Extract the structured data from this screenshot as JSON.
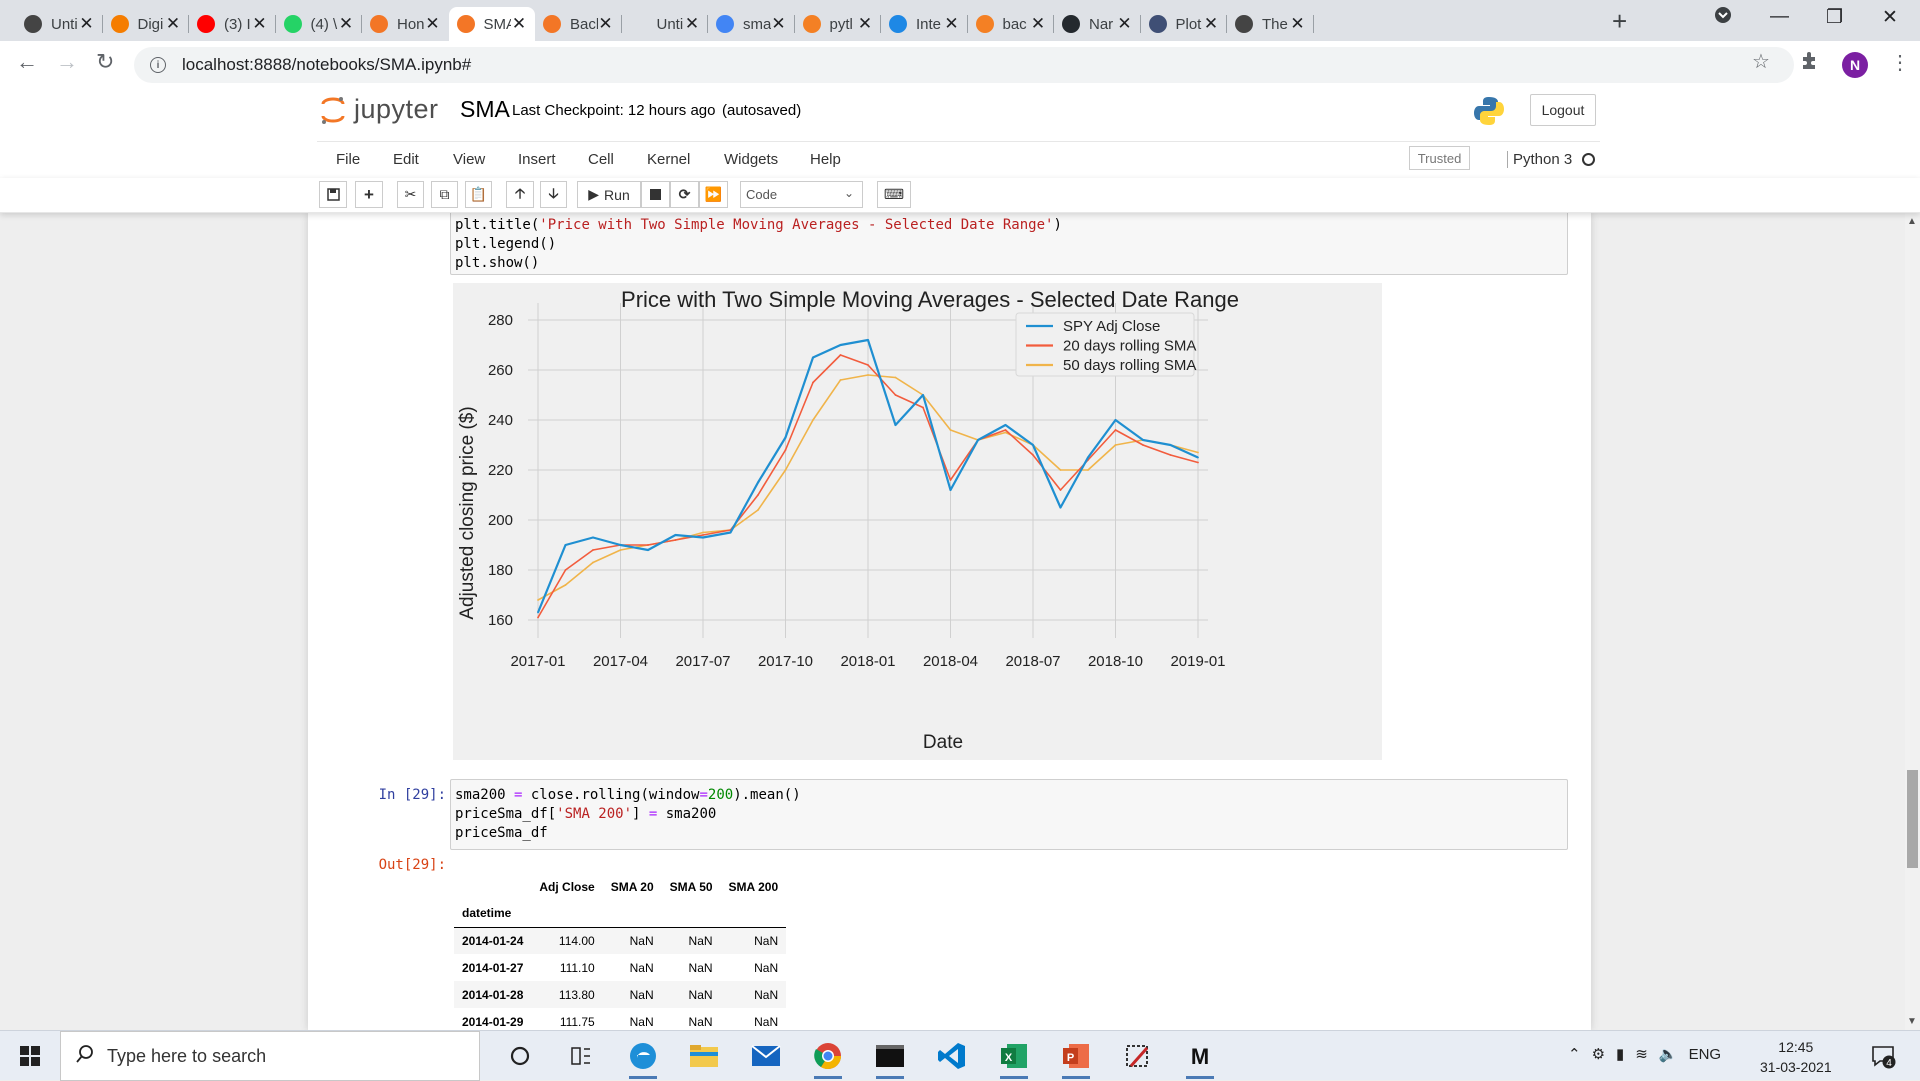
{
  "browser": {
    "tabs": [
      {
        "title": "Unti",
        "icon": "github-icon",
        "color": "#444444"
      },
      {
        "title": "Digi",
        "icon": "blogger-icon",
        "color": "#f57d00"
      },
      {
        "title": "(3) I",
        "icon": "youtube-icon",
        "color": "#ff0000"
      },
      {
        "title": "(4) \\",
        "icon": "whatsapp-icon",
        "color": "#25d366"
      },
      {
        "title": "Hon",
        "icon": "jupyter-icon",
        "color": "#f37626"
      },
      {
        "title": "SMA",
        "icon": "jupyter-notebook-icon",
        "color": "#f37626"
      },
      {
        "title": "Bacl",
        "icon": "jupyter-notebook-icon",
        "color": "#f37626"
      },
      {
        "title": "Unti",
        "icon": "blank-icon",
        "color": "#dee1e6"
      },
      {
        "title": "sma",
        "icon": "google-icon",
        "color": "#4285f4"
      },
      {
        "title": "pytl",
        "icon": "stackoverflow-icon",
        "color": "#f48024"
      },
      {
        "title": "Inte",
        "icon": "is-icon",
        "color": "#1e88e5"
      },
      {
        "title": "bac",
        "icon": "stackoverflow-icon",
        "color": "#f48024"
      },
      {
        "title": "Nar",
        "icon": "github-icon",
        "color": "#24292e"
      },
      {
        "title": "Plot",
        "icon": "plotly-icon",
        "color": "#3f4f75"
      },
      {
        "title": "The",
        "icon": "wordpress-icon",
        "color": "#444444"
      }
    ],
    "active_tab": 5,
    "url": "localhost:8888/notebooks/SMA.ipynb#",
    "profile_initial": "N"
  },
  "jupyter": {
    "logo_text": "jupyter",
    "notebook_name": "SMA",
    "checkpoint": "Last Checkpoint: 12 hours ago",
    "autosave": "(autosaved)",
    "logout": "Logout",
    "menu": [
      "File",
      "Edit",
      "View",
      "Insert",
      "Cell",
      "Kernel",
      "Widgets",
      "Help"
    ],
    "trusted": "Trusted",
    "kernel": "Python 3",
    "toolbar": {
      "run_label": "Run",
      "cell_type": "Code"
    }
  },
  "cells": {
    "code_prev": [
      "plt.title('Price with Two Simple Moving Averages - Selected Date Range')",
      "plt.legend()",
      "plt.show()"
    ],
    "in_prompt": "In [29]:",
    "out_prompt": "Out[29]:",
    "code_29": [
      "sma200 = close.rolling(window=200).mean()",
      "priceSma_df['SMA 200'] = sma200",
      "priceSma_df"
    ]
  },
  "chart_data": {
    "type": "line",
    "title": "Price with Two Simple Moving Averages - Selected Date Range",
    "xlabel": "Date",
    "ylabel": "Adjusted closing price ($)",
    "x_ticks": [
      "2017-01",
      "2017-04",
      "2017-07",
      "2017-10",
      "2018-01",
      "2018-04",
      "2018-07",
      "2018-10",
      "2019-01"
    ],
    "y_ticks": [
      160,
      180,
      200,
      220,
      240,
      260,
      280
    ],
    "ylim": [
      156,
      282
    ],
    "grid": true,
    "legend_position": "top-right",
    "x_months": [
      "2017-01",
      "2017-02",
      "2017-03",
      "2017-04",
      "2017-05",
      "2017-06",
      "2017-07",
      "2017-08",
      "2017-09",
      "2017-10",
      "2017-11",
      "2017-12",
      "2018-01",
      "2018-02",
      "2018-03",
      "2018-04",
      "2018-05",
      "2018-06",
      "2018-07",
      "2018-08",
      "2018-09",
      "2018-10",
      "2018-11",
      "2018-12",
      "2019-01"
    ],
    "series": [
      {
        "name": "SPY Adj Close",
        "color": "#1f8fd1",
        "width": 2.2,
        "values": [
          163,
          190,
          193,
          190,
          188,
          194,
          193,
          195,
          215,
          233,
          265,
          270,
          272,
          238,
          250,
          212,
          232,
          238,
          230,
          205,
          225,
          240,
          232,
          230,
          225
        ]
      },
      {
        "name": "20 days rolling SMA",
        "color": "#f25c3d",
        "width": 1.6,
        "values": [
          161,
          180,
          188,
          190,
          190,
          192,
          194,
          196,
          210,
          228,
          255,
          266,
          262,
          250,
          245,
          216,
          232,
          236,
          226,
          212,
          224,
          236,
          230,
          226,
          223
        ]
      },
      {
        "name": "50 days rolling SMA",
        "color": "#f0b44a",
        "width": 1.6,
        "values": [
          168,
          174,
          183,
          188,
          190,
          192,
          195,
          196,
          204,
          220,
          240,
          256,
          258,
          257,
          250,
          236,
          232,
          235,
          230,
          220,
          220,
          230,
          232,
          230,
          227
        ]
      }
    ]
  },
  "dataframe": {
    "columns": [
      "Adj Close",
      "SMA 20",
      "SMA 50",
      "SMA 200"
    ],
    "index_name": "datetime",
    "rows": [
      {
        "date": "2014-01-24",
        "values": [
          "114.00",
          "NaN",
          "NaN",
          "NaN"
        ]
      },
      {
        "date": "2014-01-27",
        "values": [
          "111.10",
          "NaN",
          "NaN",
          "NaN"
        ]
      },
      {
        "date": "2014-01-28",
        "values": [
          "113.80",
          "NaN",
          "NaN",
          "NaN"
        ]
      },
      {
        "date": "2014-01-29",
        "values": [
          "111.75",
          "NaN",
          "NaN",
          "NaN"
        ]
      }
    ]
  },
  "taskbar": {
    "search_placeholder": "Type here to search",
    "language": "ENG",
    "time": "12:45",
    "date": "31-03-2021",
    "notifications": "4"
  }
}
